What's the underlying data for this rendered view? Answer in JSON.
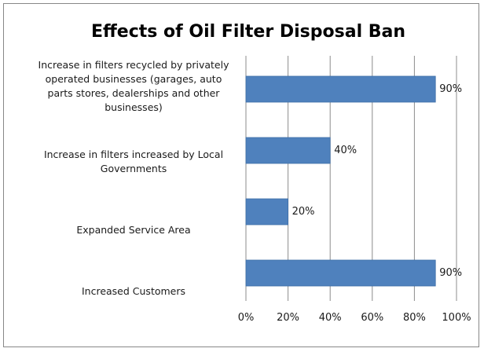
{
  "chart_data": {
    "type": "bar",
    "orientation": "horizontal",
    "title": "Effects of Oil Filter Disposal Ban",
    "categories": [
      [
        "Increase in filters recycled by privately",
        "operated businesses (garages, auto",
        "parts stores, dealerships and other",
        "businesses)"
      ],
      [
        "Increase in filters increased by Local",
        "Governments"
      ],
      [
        "Expanded Service Area"
      ],
      [
        "Increased Customers"
      ]
    ],
    "values": [
      90,
      40,
      20,
      90
    ],
    "data_labels": [
      "90%",
      "40%",
      "20%",
      "90%"
    ],
    "xlim": [
      0,
      100
    ],
    "x_ticks": [
      0,
      20,
      40,
      60,
      80,
      100
    ],
    "x_tick_labels": [
      "0%",
      "20%",
      "40%",
      "60%",
      "80%",
      "100%"
    ],
    "xlabel": "",
    "ylabel": "",
    "grid": true,
    "legend": "none",
    "colors": {
      "bar": "#4f81bd",
      "bar_edge": "#3f6fa8",
      "grid": "#8c8c8c",
      "axis": "#8c8c8c"
    }
  }
}
